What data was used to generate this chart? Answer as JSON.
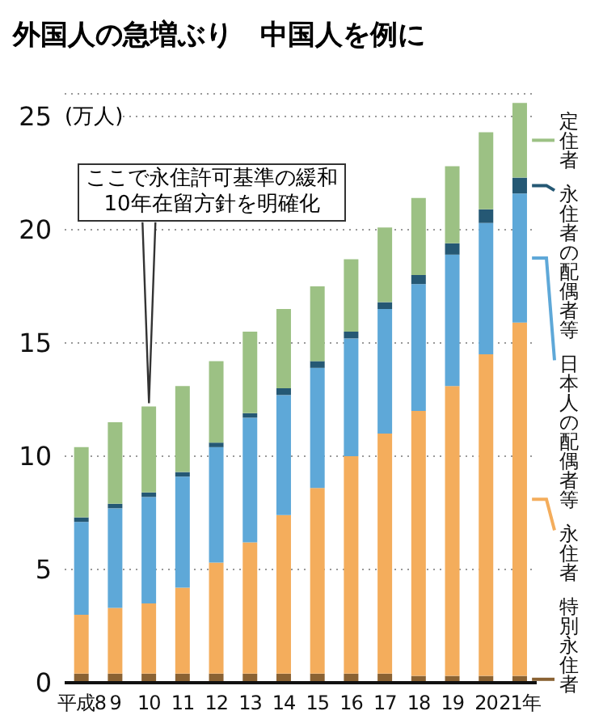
{
  "chart_data": {
    "type": "bar",
    "stacked": true,
    "title": "外国人の急増ぶり　中国人を例に",
    "ylabel": "(万人)",
    "categories": [
      "平成8",
      "9",
      "10",
      "11",
      "12",
      "13",
      "14",
      "15",
      "16",
      "17",
      "18",
      "19",
      "20",
      "21年"
    ],
    "series": [
      {
        "name": "特別永住者",
        "color": "#8a6233",
        "values": [
          0.4,
          0.4,
          0.4,
          0.4,
          0.4,
          0.4,
          0.4,
          0.4,
          0.4,
          0.4,
          0.3,
          0.3,
          0.3,
          0.3
        ]
      },
      {
        "name": "永住者",
        "color": "#f4ad5c",
        "values": [
          2.6,
          2.9,
          3.1,
          3.8,
          4.9,
          5.8,
          7.0,
          8.2,
          9.6,
          10.6,
          11.7,
          12.8,
          14.2,
          15.6
        ]
      },
      {
        "name": "日本人の配偶者等",
        "color": "#5ea8d8",
        "values": [
          4.1,
          4.4,
          4.7,
          4.9,
          5.1,
          5.5,
          5.3,
          5.3,
          5.2,
          5.5,
          5.6,
          5.8,
          5.8,
          5.7
        ]
      },
      {
        "name": "永住者の配偶者等",
        "color": "#255874",
        "values": [
          0.2,
          0.2,
          0.2,
          0.2,
          0.2,
          0.2,
          0.3,
          0.3,
          0.3,
          0.3,
          0.4,
          0.5,
          0.6,
          0.7
        ]
      },
      {
        "name": "定住者",
        "color": "#9cc184",
        "values": [
          3.1,
          3.6,
          3.8,
          3.8,
          3.6,
          3.6,
          3.5,
          3.3,
          3.2,
          3.3,
          3.4,
          3.4,
          3.4,
          3.3
        ]
      }
    ],
    "ylim": [
      0,
      26
    ],
    "yticks": [
      0,
      5,
      10,
      15,
      20,
      25
    ],
    "grid": "y",
    "legend": "right",
    "annotations": [
      {
        "text": "ここで永住許可基準の緩和\n10年在留方針を明確化",
        "x": "10",
        "y": 12.2
      }
    ]
  }
}
